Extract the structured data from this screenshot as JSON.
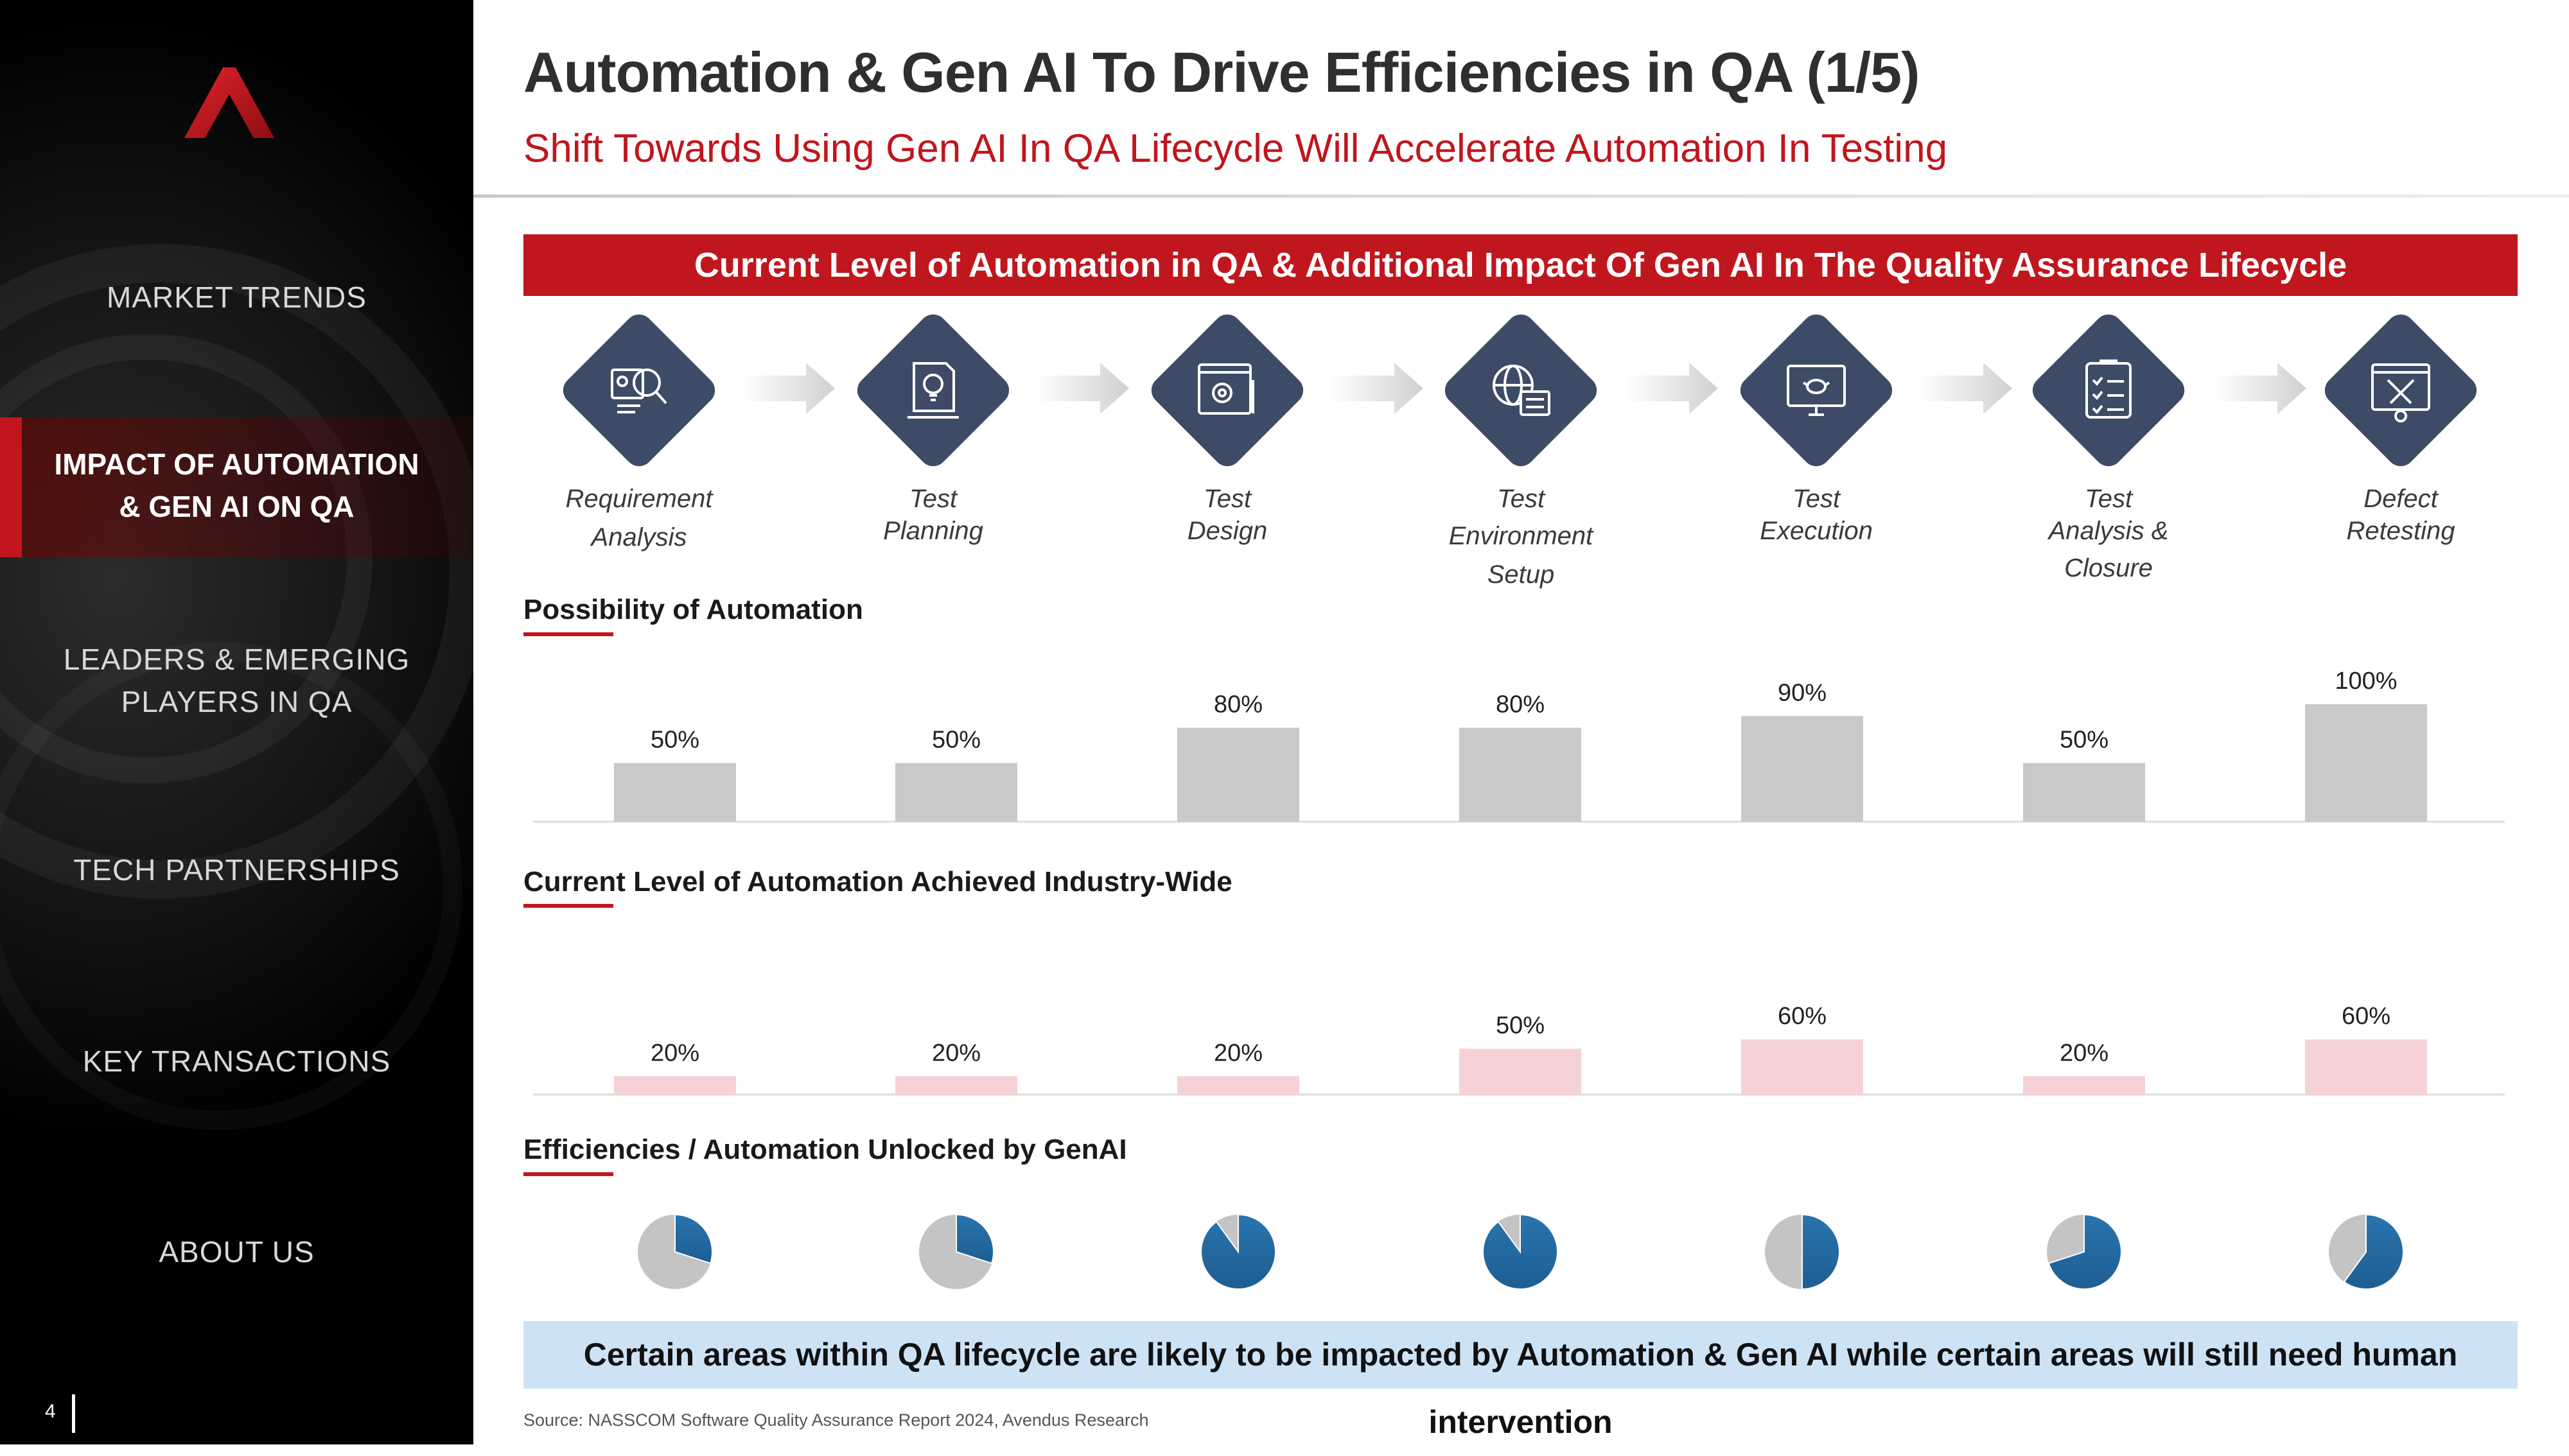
{
  "sidebar": {
    "items": [
      {
        "label": "MARKET TRENDS",
        "active": false
      },
      {
        "label": "IMPACT OF AUTOMATION",
        "label2": "& GEN AI ON QA",
        "active": true
      },
      {
        "label": "LEADERS & EMERGING",
        "label2": "PLAYERS IN QA",
        "active": false
      },
      {
        "label": "TECH PARTNERSHIPS",
        "active": false
      },
      {
        "label": "KEY TRANSACTIONS",
        "active": false
      },
      {
        "label": "ABOUT US",
        "active": false
      }
    ],
    "page_number": "4"
  },
  "header": {
    "title": "Automation & Gen AI To Drive Efficiencies in QA (1/5)",
    "subtitle": "Shift Towards Using Gen AI In QA Lifecycle Will Accelerate Automation In Testing"
  },
  "banner": "Current Level of Automation in QA & Additional Impact Of Gen AI In The Quality Assurance Lifecycle",
  "stages": [
    {
      "line1": "Requirement",
      "line2": "Analysis",
      "icon": "magnifier-document-icon"
    },
    {
      "line1": "Test",
      "line2": "Planning",
      "icon": "lightbulb-document-icon"
    },
    {
      "line1": "Test",
      "line2": "Design",
      "icon": "gear-pencil-window-icon"
    },
    {
      "line1": "Test Environment",
      "line2": "Setup",
      "icon": "globe-binary-icon"
    },
    {
      "line1": "Test",
      "line2": "Execution",
      "icon": "monitor-bug-icon"
    },
    {
      "line1": "Test",
      "line2": "Analysis & Closure",
      "icon": "checklist-clipboard-icon"
    },
    {
      "line1": "Defect",
      "line2": "Retesting",
      "icon": "tools-window-icon"
    }
  ],
  "sections": {
    "possibility": "Possibility of Automation",
    "current": "Current Level of Automation Achieved Industry-Wide",
    "efficiencies": "Efficiencies / Automation Unlocked by GenAI"
  },
  "chart_data": [
    {
      "type": "bar",
      "title": "Possibility of Automation",
      "categories": [
        "Requirement Analysis",
        "Test Planning",
        "Test Design",
        "Test Environment Setup",
        "Test Execution",
        "Test Analysis & Closure",
        "Defect Retesting"
      ],
      "values": [
        50,
        50,
        80,
        80,
        90,
        50,
        100
      ],
      "value_labels": [
        "50%",
        "50%",
        "80%",
        "80%",
        "90%",
        "50%",
        "100%"
      ],
      "ylim": [
        0,
        100
      ],
      "color": "#c9c9c9"
    },
    {
      "type": "bar",
      "title": "Current Level of Automation Achieved Industry-Wide",
      "categories": [
        "Requirement Analysis",
        "Test Planning",
        "Test Design",
        "Test Environment Setup",
        "Test Execution",
        "Test Analysis & Closure",
        "Defect Retesting"
      ],
      "values": [
        20,
        20,
        20,
        50,
        60,
        20,
        60
      ],
      "value_labels": [
        "20%",
        "20%",
        "20%",
        "50%",
        "60%",
        "20%",
        "60%"
      ],
      "ylim": [
        0,
        100
      ],
      "color": "#f6d2d6"
    },
    {
      "type": "pie",
      "title": "Efficiencies / Automation Unlocked by GenAI",
      "categories": [
        "Requirement Analysis",
        "Test Planning",
        "Test Design",
        "Test Environment Setup",
        "Test Execution",
        "Test Analysis & Closure",
        "Defect Retesting"
      ],
      "values": [
        30,
        30,
        90,
        90,
        50,
        70,
        60
      ],
      "colors": {
        "filled": "#1d5e93",
        "remainder": "#c4c4c4"
      }
    }
  ],
  "callout": "Certain areas within QA lifecycle are likely to be impacted by Automation & Gen AI while certain areas will still need human intervention",
  "source": "Source: NASSCOM Software Quality Assurance Report 2024, Avendus Research"
}
